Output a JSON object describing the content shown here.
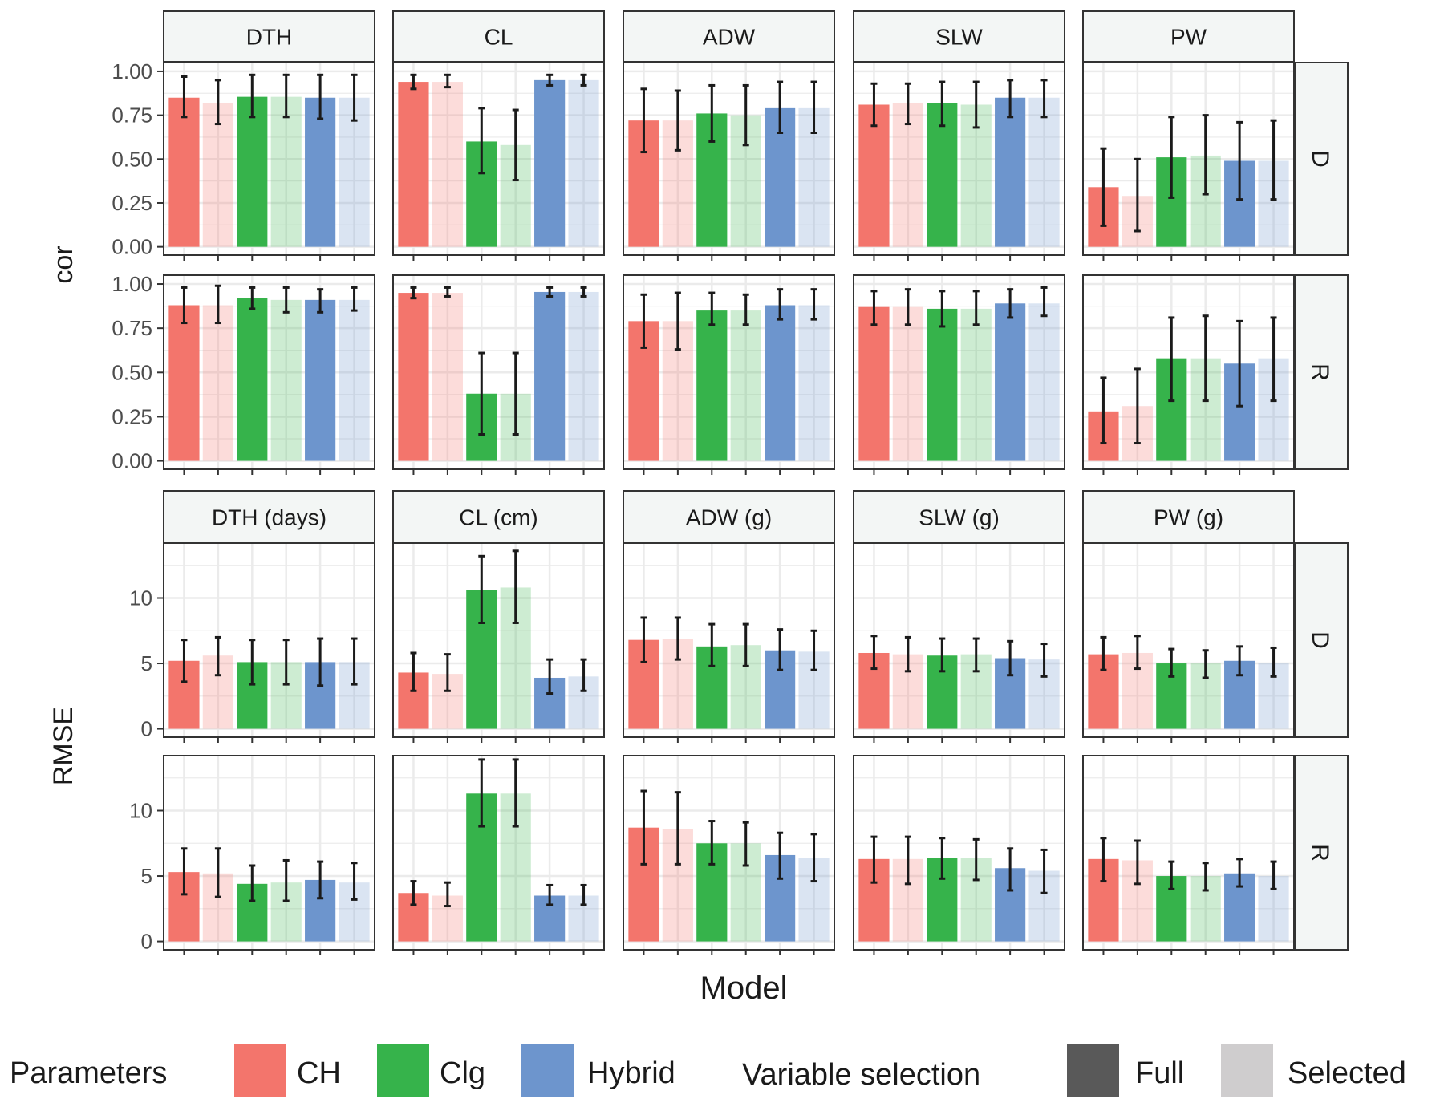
{
  "chart_data": {
    "type": "bar",
    "xlabel": "Model",
    "categories": [
      "CH Full",
      "CH Selected",
      "Clg Full",
      "Clg Selected",
      "Hybrid Full",
      "Hybrid Selected"
    ],
    "legend": {
      "placement": "bottom",
      "parameters_title": "Parameters",
      "parameters": [
        {
          "name": "CH",
          "color": "#F3756C"
        },
        {
          "name": "Clg",
          "color": "#36B34B"
        },
        {
          "name": "Hybrid",
          "color": "#6D95CD"
        }
      ],
      "selection_title": "Variable selection",
      "selection": [
        {
          "name": "Full",
          "color": "#595959"
        },
        {
          "name": "Selected",
          "color": "#CFCDCE"
        }
      ]
    },
    "row_strips": [
      "D",
      "R"
    ],
    "panels": [
      {
        "ylabel": "cor",
        "ylim": [
          0,
          1.05
        ],
        "yticks": [
          0,
          0.25,
          0.5,
          0.75,
          1
        ],
        "ytick_labels": [
          "0.00",
          "0.25",
          "0.50",
          "0.75",
          "1.00"
        ],
        "columns": [
          "DTH",
          "CL",
          "ADW",
          "SLW",
          "PW"
        ],
        "rows": {
          "D": {
            "DTH": {
              "values": [
                0.85,
                0.82,
                0.855,
                0.855,
                0.85,
                0.85
              ],
              "lo": [
                0.74,
                0.7,
                0.74,
                0.74,
                0.73,
                0.72
              ],
              "hi": [
                0.97,
                0.95,
                0.98,
                0.98,
                0.98,
                0.98
              ]
            },
            "CL": {
              "values": [
                0.94,
                0.94,
                0.6,
                0.58,
                0.95,
                0.95
              ],
              "lo": [
                0.9,
                0.91,
                0.42,
                0.38,
                0.92,
                0.92
              ],
              "hi": [
                0.98,
                0.98,
                0.79,
                0.78,
                0.98,
                0.98
              ]
            },
            "ADW": {
              "values": [
                0.72,
                0.72,
                0.76,
                0.75,
                0.79,
                0.79
              ],
              "lo": [
                0.54,
                0.55,
                0.6,
                0.58,
                0.65,
                0.65
              ],
              "hi": [
                0.9,
                0.89,
                0.92,
                0.92,
                0.94,
                0.94
              ]
            },
            "SLW": {
              "values": [
                0.81,
                0.82,
                0.82,
                0.81,
                0.85,
                0.85
              ],
              "lo": [
                0.69,
                0.7,
                0.69,
                0.68,
                0.74,
                0.74
              ],
              "hi": [
                0.93,
                0.93,
                0.94,
                0.94,
                0.95,
                0.95
              ]
            },
            "PW": {
              "values": [
                0.34,
                0.29,
                0.51,
                0.52,
                0.49,
                0.49
              ],
              "lo": [
                0.12,
                0.09,
                0.28,
                0.3,
                0.27,
                0.27
              ],
              "hi": [
                0.56,
                0.5,
                0.74,
                0.75,
                0.71,
                0.72
              ]
            }
          },
          "R": {
            "DTH": {
              "values": [
                0.88,
                0.88,
                0.92,
                0.91,
                0.91,
                0.91
              ],
              "lo": [
                0.78,
                0.78,
                0.86,
                0.84,
                0.84,
                0.85
              ],
              "hi": [
                0.98,
                0.99,
                0.98,
                0.98,
                0.97,
                0.98
              ]
            },
            "CL": {
              "values": [
                0.95,
                0.95,
                0.38,
                0.38,
                0.955,
                0.955
              ],
              "lo": [
                0.92,
                0.93,
                0.15,
                0.15,
                0.93,
                0.93
              ],
              "hi": [
                0.98,
                0.98,
                0.61,
                0.61,
                0.98,
                0.98
              ]
            },
            "ADW": {
              "values": [
                0.79,
                0.79,
                0.85,
                0.85,
                0.88,
                0.88
              ],
              "lo": [
                0.64,
                0.63,
                0.77,
                0.77,
                0.8,
                0.8
              ],
              "hi": [
                0.94,
                0.95,
                0.95,
                0.94,
                0.97,
                0.97
              ]
            },
            "SLW": {
              "values": [
                0.87,
                0.87,
                0.86,
                0.86,
                0.89,
                0.89
              ],
              "lo": [
                0.77,
                0.77,
                0.76,
                0.77,
                0.81,
                0.82
              ],
              "hi": [
                0.96,
                0.97,
                0.96,
                0.96,
                0.97,
                0.98
              ]
            },
            "PW": {
              "values": [
                0.28,
                0.31,
                0.58,
                0.58,
                0.55,
                0.58
              ],
              "lo": [
                0.1,
                0.1,
                0.34,
                0.34,
                0.31,
                0.34
              ],
              "hi": [
                0.47,
                0.52,
                0.81,
                0.82,
                0.79,
                0.81
              ]
            }
          }
        }
      },
      {
        "ylabel": "RMSE",
        "ylim": [
          0,
          14.2
        ],
        "yticks": [
          0,
          5,
          10
        ],
        "ytick_labels": [
          "0",
          "5",
          "10"
        ],
        "columns": [
          "DTH (days)",
          "CL (cm)",
          "ADW (g)",
          "SLW (g)",
          "PW (g)"
        ],
        "rows": {
          "D": {
            "DTH (days)": {
              "values": [
                5.2,
                5.6,
                5.1,
                5.1,
                5.1,
                5.1
              ],
              "lo": [
                3.6,
                4.1,
                3.4,
                3.4,
                3.3,
                3.4
              ],
              "hi": [
                6.8,
                7.0,
                6.8,
                6.8,
                6.9,
                6.9
              ]
            },
            "CL (cm)": {
              "values": [
                4.3,
                4.2,
                10.6,
                10.8,
                3.9,
                4.0
              ],
              "lo": [
                2.9,
                2.9,
                8.1,
                8.1,
                2.7,
                2.9
              ],
              "hi": [
                5.8,
                5.7,
                13.2,
                13.6,
                5.3,
                5.3
              ]
            },
            "ADW (g)": {
              "values": [
                6.8,
                6.9,
                6.3,
                6.4,
                6.0,
                5.9
              ],
              "lo": [
                5.1,
                5.3,
                4.8,
                4.8,
                4.5,
                4.5
              ],
              "hi": [
                8.5,
                8.5,
                8.0,
                8.0,
                7.6,
                7.5
              ]
            },
            "SLW (g)": {
              "values": [
                5.8,
                5.7,
                5.6,
                5.7,
                5.4,
                5.3
              ],
              "lo": [
                4.6,
                4.4,
                4.4,
                4.4,
                4.1,
                4.0
              ],
              "hi": [
                7.1,
                7.0,
                6.9,
                6.9,
                6.7,
                6.5
              ]
            },
            "PW (g)": {
              "values": [
                5.7,
                5.8,
                5.0,
                5.0,
                5.2,
                5.0
              ],
              "lo": [
                4.5,
                4.6,
                4.0,
                3.9,
                4.1,
                4.0
              ],
              "hi": [
                7.0,
                7.1,
                6.1,
                6.0,
                6.3,
                6.2
              ]
            }
          },
          "R": {
            "DTH (days)": {
              "values": [
                5.3,
                5.2,
                4.4,
                4.5,
                4.7,
                4.5
              ],
              "lo": [
                3.6,
                3.4,
                3.1,
                3.1,
                3.3,
                3.2
              ],
              "hi": [
                7.1,
                7.1,
                5.8,
                6.2,
                6.1,
                6.0
              ]
            },
            "CL (cm)": {
              "values": [
                3.7,
                3.5,
                11.3,
                11.3,
                3.5,
                3.5
              ],
              "lo": [
                2.8,
                2.7,
                8.8,
                8.8,
                2.8,
                2.8
              ],
              "hi": [
                4.6,
                4.5,
                13.9,
                13.9,
                4.3,
                4.3
              ]
            },
            "ADW (g)": {
              "values": [
                8.7,
                8.6,
                7.5,
                7.5,
                6.6,
                6.4
              ],
              "lo": [
                5.9,
                5.9,
                5.9,
                5.8,
                4.8,
                4.6
              ],
              "hi": [
                11.5,
                11.4,
                9.2,
                9.1,
                8.3,
                8.2
              ]
            },
            "SLW (g)": {
              "values": [
                6.3,
                6.3,
                6.4,
                6.4,
                5.6,
                5.4
              ],
              "lo": [
                4.5,
                4.4,
                4.8,
                4.7,
                3.9,
                3.7
              ],
              "hi": [
                8.0,
                8.0,
                7.9,
                7.8,
                7.1,
                7.0
              ]
            },
            "PW (g)": {
              "values": [
                6.3,
                6.2,
                5.0,
                5.0,
                5.2,
                5.0
              ],
              "lo": [
                4.6,
                4.4,
                4.0,
                3.9,
                4.2,
                4.0
              ],
              "hi": [
                7.9,
                7.7,
                6.1,
                6.0,
                6.3,
                6.1
              ]
            }
          }
        }
      }
    ]
  }
}
